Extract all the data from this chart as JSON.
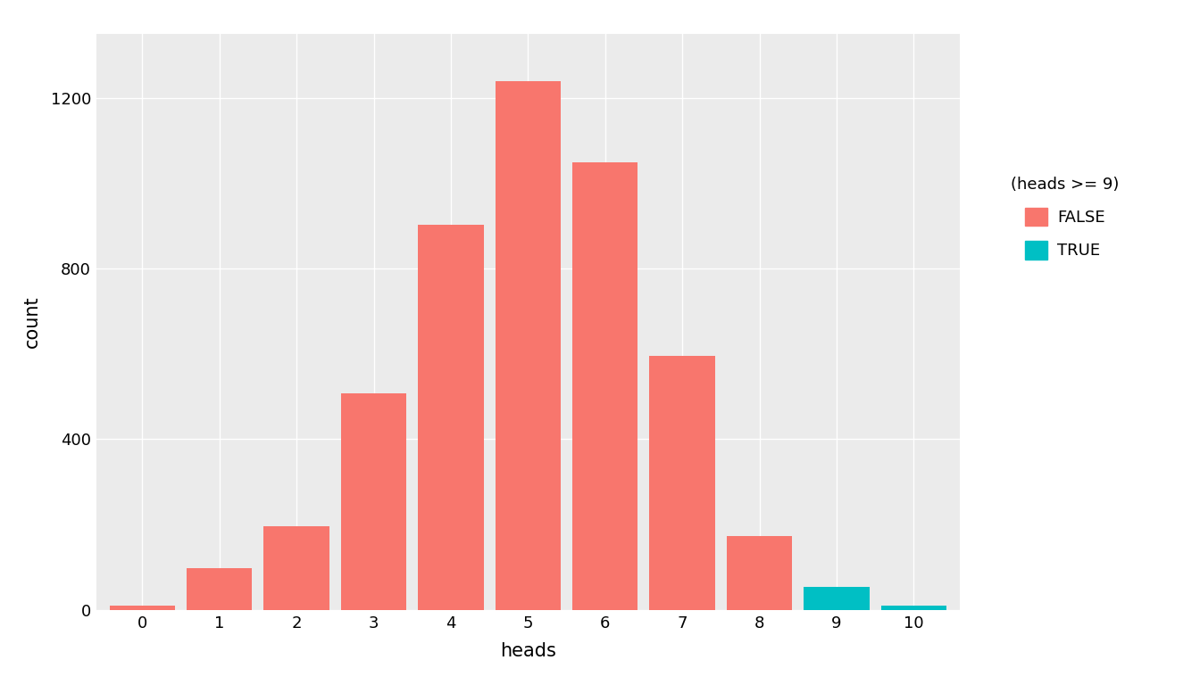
{
  "categories": [
    0,
    1,
    2,
    3,
    4,
    5,
    6,
    7,
    8,
    9,
    10
  ],
  "false_counts": [
    10,
    98,
    195,
    508,
    902,
    1240,
    1050,
    595,
    172,
    0,
    0
  ],
  "true_counts": [
    0,
    0,
    0,
    0,
    0,
    0,
    0,
    0,
    0,
    54,
    10
  ],
  "false_color": "#F8766D",
  "true_color": "#00BFC4",
  "background_color": "#EBEBEB",
  "grid_color": "#FFFFFF",
  "xlabel": "heads",
  "ylabel": "count",
  "legend_title": "(heads >= 9)",
  "legend_false": "FALSE",
  "legend_true": "TRUE",
  "ylim": [
    0,
    1350
  ],
  "yticks": [
    0,
    400,
    800,
    1200
  ],
  "xticks": [
    0,
    1,
    2,
    3,
    4,
    5,
    6,
    7,
    8,
    9,
    10
  ]
}
